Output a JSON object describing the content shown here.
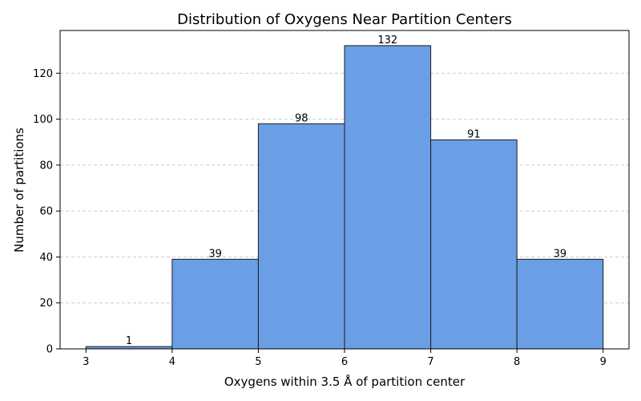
{
  "chart_data": {
    "type": "bar",
    "title": "Distribution of Oxygens Near Partition Centers",
    "xlabel": "Oxygens within 3.5 Å of partition center",
    "ylabel": "Number of partitions",
    "bins": [
      [
        3,
        4
      ],
      [
        4,
        5
      ],
      [
        5,
        6
      ],
      [
        6,
        7
      ],
      [
        7,
        8
      ],
      [
        8,
        9
      ]
    ],
    "values": [
      1,
      39,
      98,
      132,
      91,
      39
    ],
    "data_labels": [
      "1",
      "39",
      "98",
      "132",
      "91",
      "39"
    ],
    "xlim": [
      2.7,
      9.3
    ],
    "ylim": [
      0,
      138.6
    ],
    "xticks": [
      3,
      4,
      5,
      6,
      7,
      8,
      9
    ],
    "yticks": [
      0,
      20,
      40,
      60,
      80,
      100,
      120
    ],
    "grid": "y-dashed",
    "bar_color": "#6a9fe6",
    "edge_color": "#1a1a1a",
    "grid_color": "#cccccc"
  }
}
